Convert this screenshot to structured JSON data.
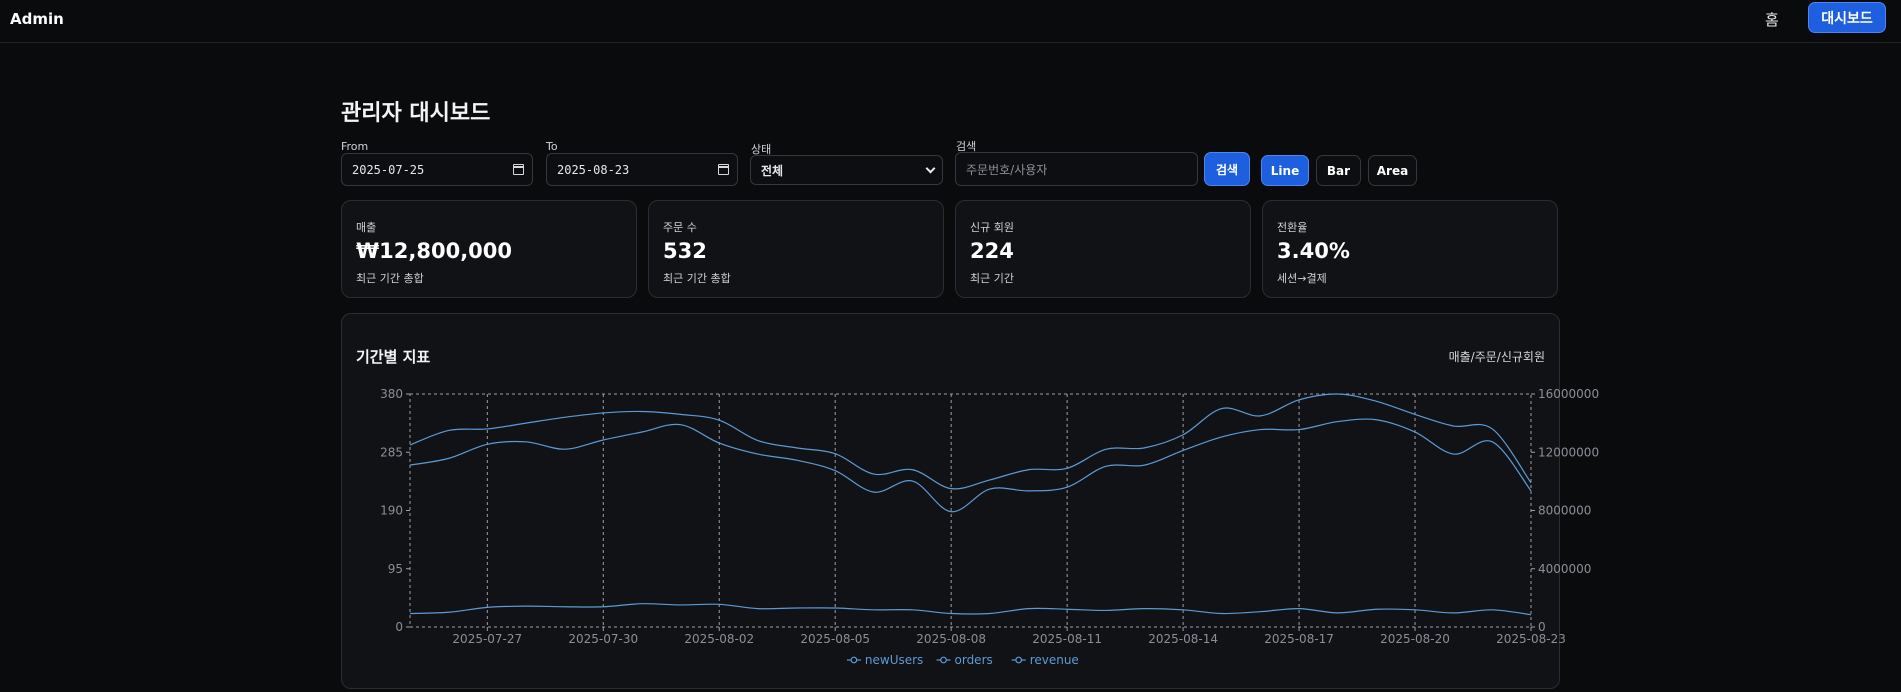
{
  "header": {
    "brand": "Admin",
    "nav_home": "홈",
    "nav_dashboard": "대시보드"
  },
  "page": {
    "title": "관리자 대시보드"
  },
  "filters": {
    "from_label": "From",
    "from_value": "2025-07-25",
    "to_label": "To",
    "to_value": "2025-08-23",
    "status_label": "상태",
    "status_value": "전체",
    "search_label": "검색",
    "search_placeholder": "주문번호/사용자",
    "search_button": "검색"
  },
  "chart_types": {
    "line": "Line",
    "bar": "Bar",
    "area": "Area",
    "active": "Line"
  },
  "kpis": [
    {
      "label": "매출",
      "value": "₩12,800,000",
      "sub": "최근 기간 총합"
    },
    {
      "label": "주문 수",
      "value": "532",
      "sub": "최근 기간 총합"
    },
    {
      "label": "신규 회원",
      "value": "224",
      "sub": "최근 기간"
    },
    {
      "label": "전환율",
      "value": "3.40%",
      "sub": "세션→결제"
    }
  ],
  "panel": {
    "title": "기간별 지표",
    "subtitle": "매출/주문/신규회원"
  },
  "chart_data": {
    "type": "line",
    "x": [
      "2025-07-25",
      "2025-07-26",
      "2025-07-27",
      "2025-07-28",
      "2025-07-29",
      "2025-07-30",
      "2025-07-31",
      "2025-08-01",
      "2025-08-02",
      "2025-08-03",
      "2025-08-04",
      "2025-08-05",
      "2025-08-06",
      "2025-08-07",
      "2025-08-08",
      "2025-08-09",
      "2025-08-10",
      "2025-08-11",
      "2025-08-12",
      "2025-08-13",
      "2025-08-14",
      "2025-08-15",
      "2025-08-16",
      "2025-08-17",
      "2025-08-18",
      "2025-08-19",
      "2025-08-20",
      "2025-08-21",
      "2025-08-22",
      "2025-08-23"
    ],
    "x_tick_labels": [
      "2025-07-27",
      "2025-07-30",
      "2025-08-02",
      "2025-08-05",
      "2025-08-08",
      "2025-08-11",
      "2025-08-14",
      "2025-08-17",
      "2025-08-20",
      "2025-08-23"
    ],
    "left_axis": {
      "ticks": [
        0,
        95,
        190,
        285,
        380
      ],
      "ylim": [
        0,
        380
      ]
    },
    "right_axis": {
      "ticks": [
        0,
        4000000,
        8000000,
        12000000,
        16000000
      ],
      "ylim": [
        0,
        16000000
      ]
    },
    "series": [
      {
        "name": "newUsers",
        "axis": "left",
        "color": "#5b9bd5",
        "values": [
          22,
          24,
          32,
          34,
          33,
          33,
          38,
          36,
          37,
          30,
          31,
          31,
          28,
          28,
          22,
          22,
          30,
          29,
          27,
          30,
          28,
          22,
          25,
          30,
          23,
          29,
          28,
          23,
          28,
          20
        ]
      },
      {
        "name": "orders",
        "axis": "left",
        "color": "#5b9bd5",
        "values": [
          264,
          275,
          298,
          302,
          290,
          305,
          318,
          330,
          300,
          282,
          272,
          255,
          220,
          238,
          188,
          225,
          222,
          228,
          262,
          264,
          288,
          310,
          322,
          322,
          335,
          338,
          318,
          282,
          302,
          222
        ]
      },
      {
        "name": "revenue",
        "axis": "right",
        "color": "#5b9bd5",
        "values": [
          12500000,
          13500000,
          13600000,
          14000000,
          14400000,
          14700000,
          14800000,
          14600000,
          14200000,
          12800000,
          12300000,
          11900000,
          10500000,
          10800000,
          9500000,
          10100000,
          10800000,
          10900000,
          12200000,
          12300000,
          13200000,
          15000000,
          14500000,
          15600000,
          16000000,
          15500000,
          14600000,
          13800000,
          13600000,
          9900000
        ]
      }
    ],
    "legend": [
      "newUsers",
      "orders",
      "revenue"
    ],
    "legend_position": "bottom-center",
    "grid": true
  }
}
